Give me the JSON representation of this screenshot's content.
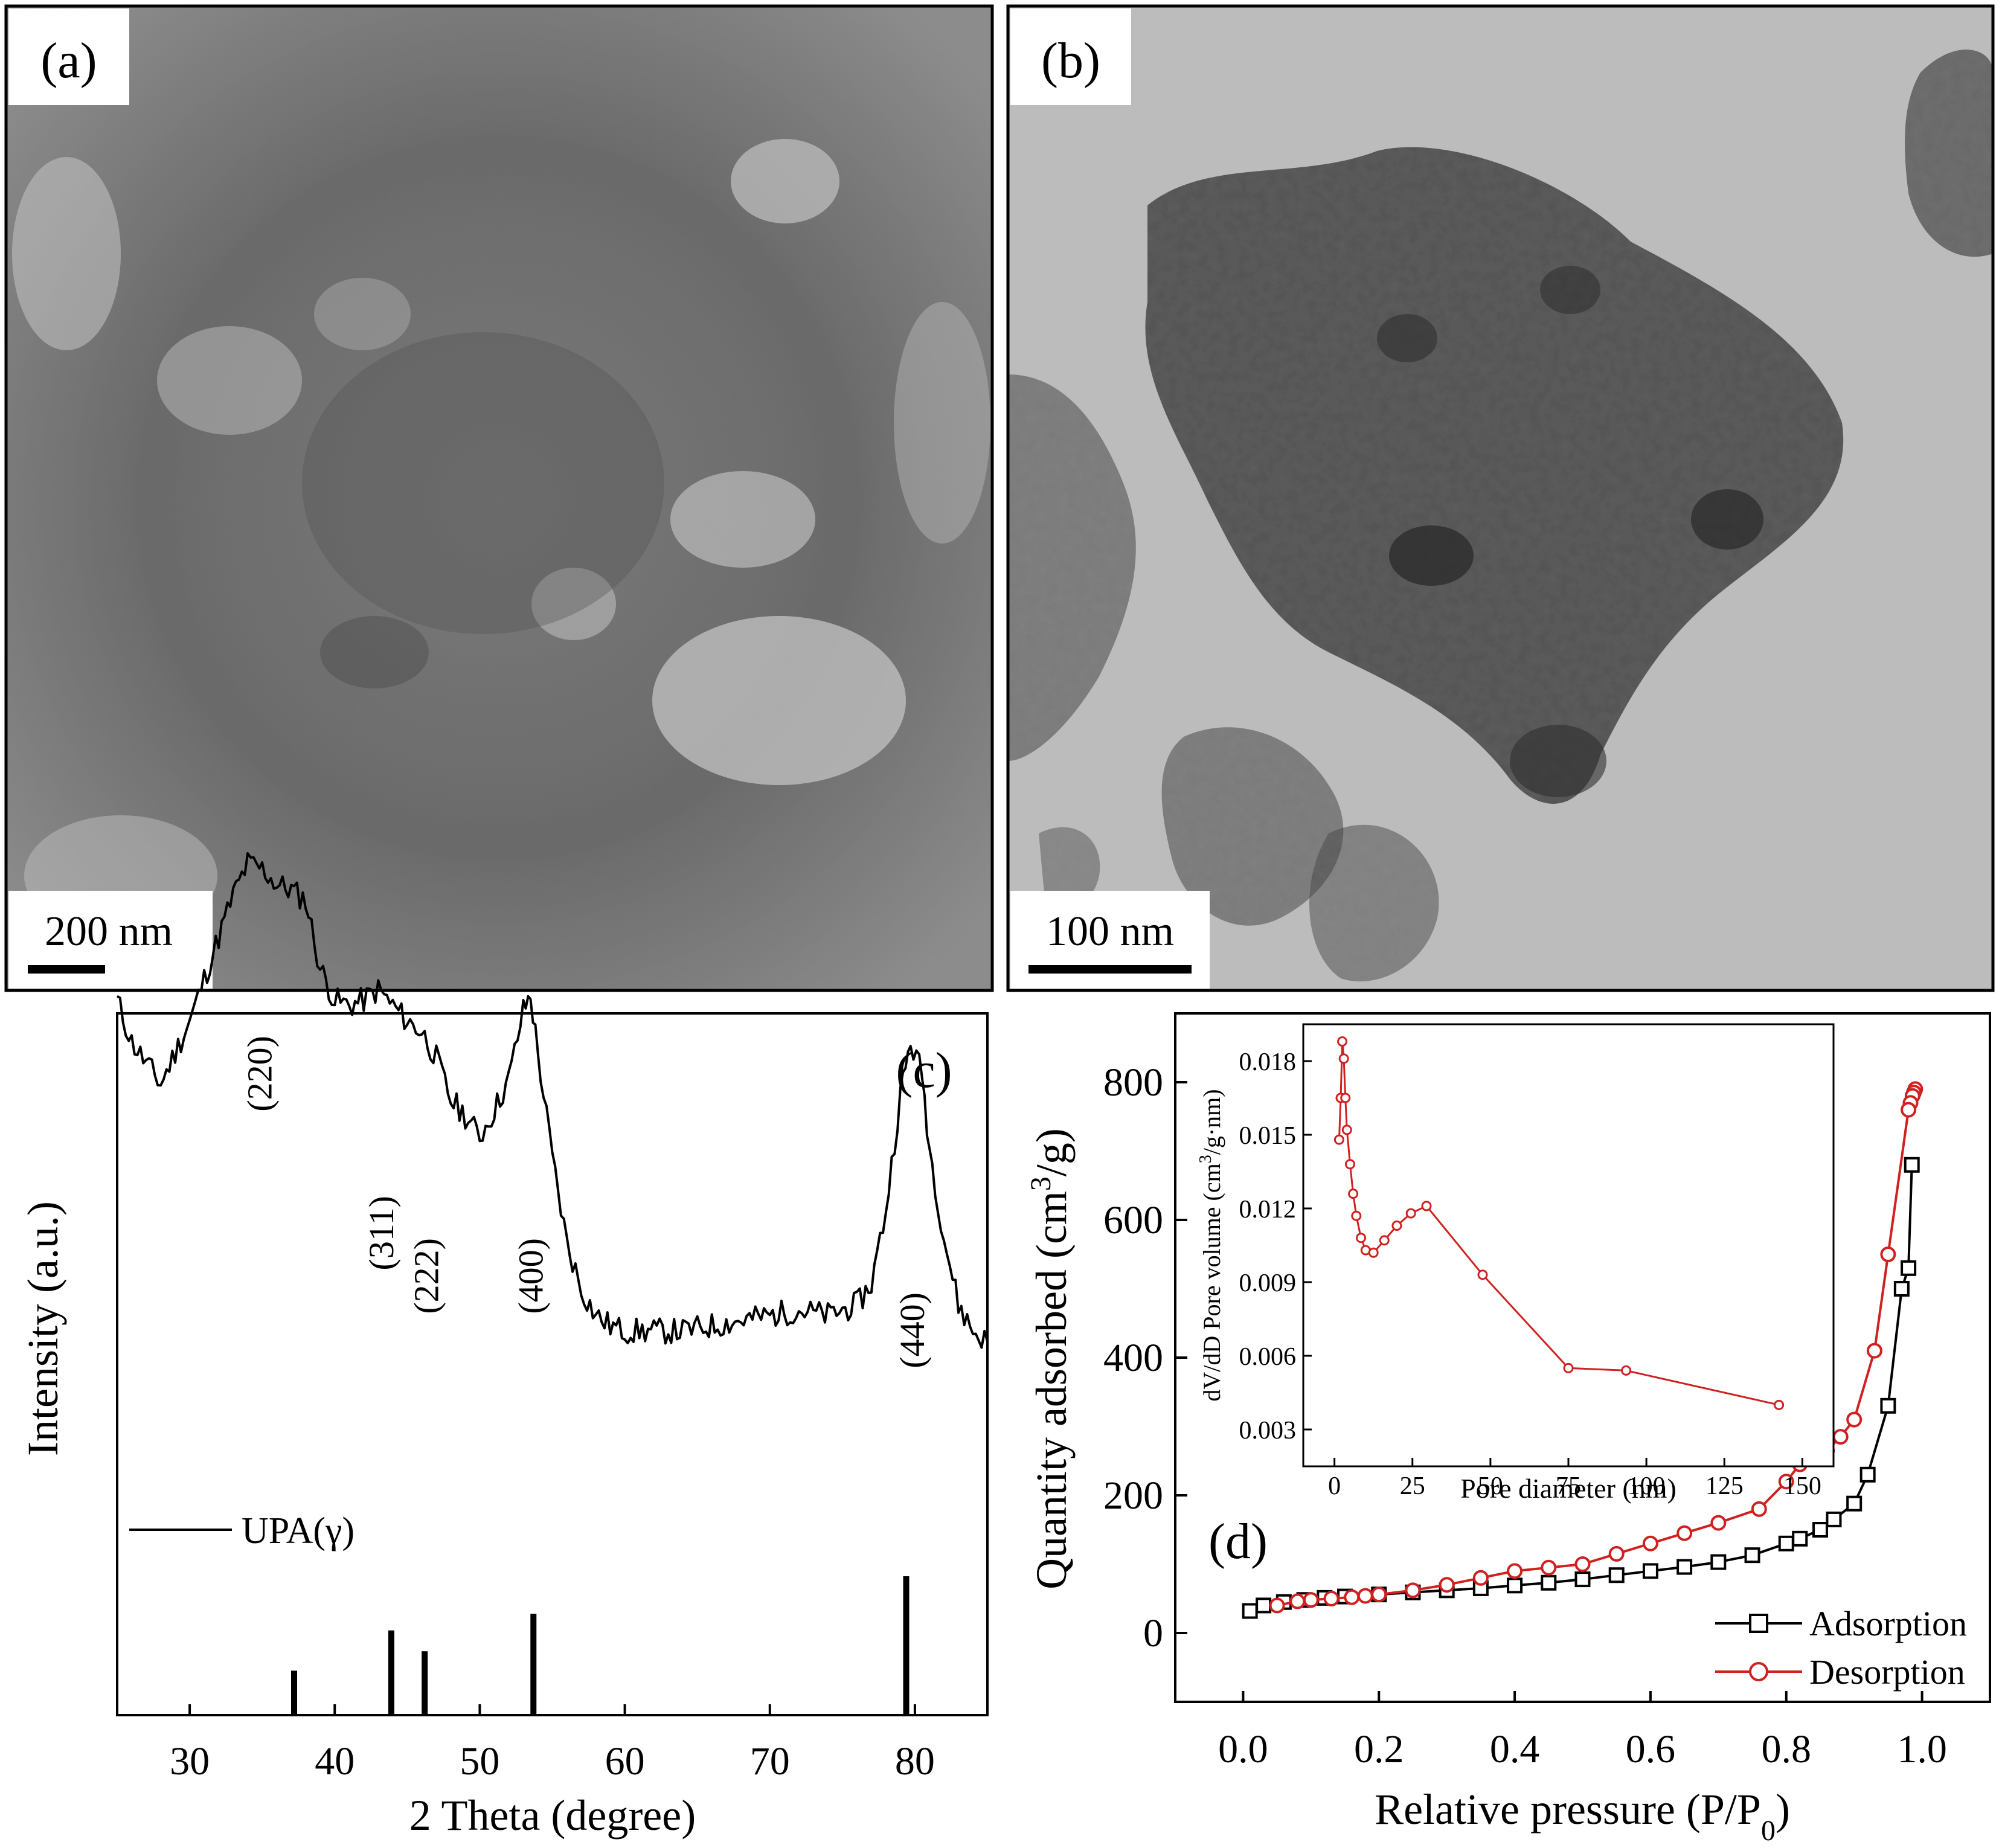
{
  "panels": {
    "a": {
      "label": "(a)",
      "scale_bar": "200 nm"
    },
    "b": {
      "label": "(b)",
      "scale_bar": "100 nm"
    },
    "c": {
      "label": "(c)",
      "xlabel": "2 Theta (degree)",
      "ylabel": "Intensity (a.u.)",
      "legend": "UPA(γ)",
      "peaks": [
        {
          "label": "(220)",
          "x": 34.8
        },
        {
          "label": "(311)",
          "x": 43.2
        },
        {
          "label": "(222)",
          "x": 46.3
        },
        {
          "label": "(400)",
          "x": 53.5
        },
        {
          "label": "(440)",
          "x": 79.8
        }
      ]
    },
    "d": {
      "label": "(d)",
      "xlabel": "Relative pressure (P/P",
      "xlabel_sub": "0",
      "xlabel_end": ")",
      "ylabel_pre": "Quantity adsorbed (cm",
      "ylabel_sup": "3",
      "ylabel_post": "/g)",
      "inset": {
        "xlabel": "Pore diameter (nm)",
        "ylabel_pre": "dV/dD Pore volume (cm",
        "ylabel_sup": "3",
        "ylabel_post": "/g·nm)"
      }
    }
  },
  "chart_data": [
    {
      "id": "c",
      "type": "line",
      "xlabel": "2 Theta (degree)",
      "ylabel": "Intensity (a.u.)",
      "xlim": [
        25,
        85
      ],
      "xticks": [
        30,
        40,
        50,
        60,
        70,
        80
      ],
      "series": [
        {
          "name": "UPA(γ)",
          "color": "#000000",
          "x": [
            25,
            26,
            27,
            28,
            29,
            30,
            31,
            32,
            33,
            34,
            35,
            36,
            37,
            38,
            39,
            40,
            41,
            42,
            43,
            44,
            45,
            46,
            47,
            48,
            49,
            50,
            51,
            52,
            53,
            53.5,
            54,
            55,
            56,
            57,
            58,
            59,
            60,
            62,
            64,
            66,
            68,
            70,
            72,
            74,
            76,
            77,
            78,
            79,
            79.7,
            80.5,
            81,
            82,
            83,
            84,
            85
          ],
          "y": [
            70,
            62,
            58,
            54,
            60,
            66,
            74,
            82,
            90,
            96,
            95,
            92,
            91,
            89,
            76,
            70,
            69,
            70,
            72,
            69,
            66,
            64,
            59,
            51,
            48,
            44,
            49,
            55,
            68,
            71,
            60,
            40,
            24,
            15,
            10,
            8,
            7,
            7,
            7,
            8,
            9,
            10,
            11,
            10,
            12,
            16,
            30,
            52,
            62,
            56,
            42,
            25,
            12,
            7,
            5
          ]
        }
      ],
      "reference_lines": {
        "x": [
          37.2,
          43.9,
          46.2,
          53.7,
          79.4
        ],
        "relative_height": [
          0.32,
          0.61,
          0.46,
          0.73,
          1.0
        ]
      }
    },
    {
      "id": "d",
      "type": "line",
      "xlabel": "Relative pressure (P/P0)",
      "ylabel": "Quantity adsorbed (cm3/g)",
      "xlim": [
        -0.1,
        1.1
      ],
      "ylim": [
        -100,
        900
      ],
      "xticks": [
        0.0,
        0.2,
        0.4,
        0.6,
        0.8,
        1.0
      ],
      "yticks": [
        0,
        200,
        400,
        600,
        800
      ],
      "legend": "bottom-right",
      "series": [
        {
          "name": "Adsorption",
          "color": "#000000",
          "marker": "square",
          "x": [
            0.01,
            0.03,
            0.06,
            0.09,
            0.12,
            0.15,
            0.2,
            0.25,
            0.3,
            0.35,
            0.4,
            0.45,
            0.5,
            0.55,
            0.6,
            0.65,
            0.7,
            0.75,
            0.8,
            0.82,
            0.85,
            0.87,
            0.9,
            0.92,
            0.95,
            0.97,
            0.98,
            0.985
          ],
          "y": [
            32,
            40,
            45,
            48,
            51,
            53,
            56,
            59,
            62,
            65,
            69,
            73,
            78,
            84,
            90,
            96,
            103,
            113,
            130,
            137,
            150,
            165,
            188,
            230,
            330,
            500,
            530,
            680
          ]
        },
        {
          "name": "Desorption",
          "color": "#d02020",
          "marker": "circle",
          "x": [
            0.99,
            0.988,
            0.986,
            0.983,
            0.98,
            0.95,
            0.93,
            0.9,
            0.88,
            0.86,
            0.84,
            0.82,
            0.8,
            0.76,
            0.7,
            0.65,
            0.6,
            0.55,
            0.5,
            0.45,
            0.4,
            0.35,
            0.3,
            0.25,
            0.2,
            0.18,
            0.16,
            0.13,
            0.1,
            0.08,
            0.05
          ],
          "y": [
            790,
            785,
            780,
            770,
            760,
            550,
            410,
            310,
            285,
            265,
            260,
            245,
            220,
            180,
            160,
            145,
            130,
            115,
            100,
            95,
            90,
            80,
            70,
            62,
            56,
            54,
            52,
            50,
            48,
            46,
            40
          ]
        }
      ]
    },
    {
      "id": "d-inset",
      "type": "line",
      "xlabel": "Pore diameter (nm)",
      "ylabel": "dV/dD Pore volume (cm3/g·nm)",
      "xlim": [
        -10,
        160
      ],
      "ylim": [
        0.0015,
        0.0195
      ],
      "xticks": [
        0,
        25,
        50,
        75,
        100,
        125,
        150
      ],
      "yticks": [
        0.003,
        0.006,
        0.009,
        0.012,
        0.015,
        0.018
      ],
      "series": [
        {
          "name": "",
          "color": "#d02020",
          "marker": "circle",
          "x": [
            1.5,
            2.0,
            2.5,
            3.0,
            3.5,
            4.0,
            5.0,
            6.0,
            7.0,
            8.5,
            10.0,
            12.5,
            16.0,
            20.0,
            24.5,
            29.5,
            47.5,
            75.0,
            93.5,
            142.5
          ],
          "y": [
            0.0148,
            0.0165,
            0.0188,
            0.0181,
            0.0165,
            0.0152,
            0.0138,
            0.0126,
            0.0117,
            0.0108,
            0.0103,
            0.0102,
            0.0107,
            0.0113,
            0.0118,
            0.0121,
            0.0093,
            0.0055,
            0.0054,
            0.004
          ]
        }
      ]
    }
  ]
}
